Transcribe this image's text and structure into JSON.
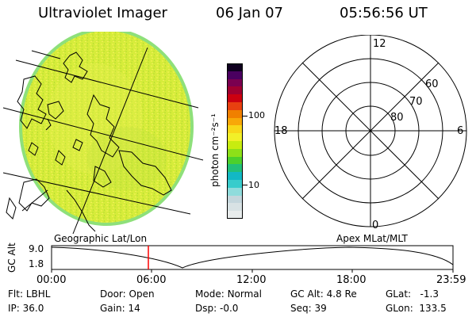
{
  "header": {
    "title": "Ultraviolet Imager",
    "date": "06 Jan 07",
    "time": "05:56:56 UT"
  },
  "colorbar": {
    "unit_label": "photon cm⁻²s⁻¹",
    "tick_labels": [
      "100",
      "10"
    ],
    "colors": [
      "#e8ecec",
      "#d8e2e4",
      "#c4d6dc",
      "#8fdcdc",
      "#38cccc",
      "#12b8c4",
      "#22c078",
      "#4cd02c",
      "#8ee018",
      "#c8ec10",
      "#f2f028",
      "#f8d818",
      "#f8a808",
      "#f08000",
      "#e84010",
      "#cc0010",
      "#a00030",
      "#7a0050",
      "#4a0060",
      "#100020"
    ]
  },
  "polar": {
    "mlt_labels": {
      "top": "12",
      "left": "18",
      "right": "6",
      "bottom": "0"
    },
    "lat_labels": [
      "60",
      "70",
      "80"
    ]
  },
  "timeline": {
    "left_label": "Geographic Lat/Lon",
    "right_label": "Apex MLat/MLT",
    "y_axis_label": "GC Alt",
    "y_ticks": [
      "9.0",
      "1.8"
    ],
    "x_ticks": [
      "00:00",
      "06:00",
      "12:00",
      "18:00",
      "23:59"
    ]
  },
  "status": {
    "row1": [
      {
        "key": "Flt:",
        "val": "LBHL"
      },
      {
        "key": "Door:",
        "val": "Open"
      },
      {
        "key": "Mode:",
        "val": "Normal"
      },
      {
        "key": "GC Alt:",
        "val": "4.8 Re"
      },
      {
        "key": "GLat:",
        "val": "-1.3"
      }
    ],
    "row2": [
      {
        "key": "IP:",
        "val": "36.0"
      },
      {
        "key": "Gain:",
        "val": "14"
      },
      {
        "key": "Dsp:",
        "val": "-0.0"
      },
      {
        "key": "Seq:",
        "val": "39"
      },
      {
        "key": "GLon:",
        "val": "133.5"
      }
    ]
  }
}
